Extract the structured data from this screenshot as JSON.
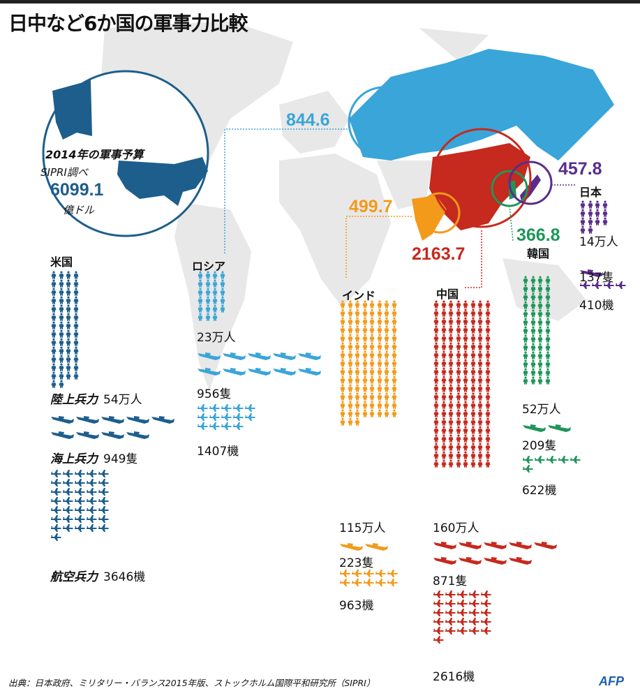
{
  "title": "日中など6か国の軍事力比較",
  "budget_caption": {
    "line1": "2014年の軍事予算",
    "line2": "SIPRI調べ",
    "unit": "億ドル"
  },
  "category_labels": {
    "land": "陸上兵力",
    "sea": "海上兵力",
    "air": "航空兵力"
  },
  "source": "出典：日本政府、ミリタリー・バランス2015年版、ストックホルム国際平和研究所（SIPRI）",
  "logo": "AFP",
  "colors": {
    "usa": "#1d5e8c",
    "russia": "#3aa5d8",
    "india": "#f39a1b",
    "china": "#c6291d",
    "korea": "#1e9659",
    "japan": "#5a2c8c",
    "land": "#e6e6e6"
  },
  "chart_data": {
    "type": "infographic-pictogram",
    "title": "日中など6か国の軍事力比較",
    "units": {
      "budget": "億ドル",
      "troops": "万人",
      "ships": "隻",
      "aircraft": "機"
    },
    "icon_scale": {
      "troops_per_icon": 1,
      "ships_per_icon": 100,
      "aircraft_per_icon": 100
    },
    "countries": [
      {
        "key": "usa",
        "name": "米国",
        "budget": 6099.1,
        "budget_label": "6099.1",
        "troops": 54,
        "troops_label": "54万人",
        "ships": 949,
        "ships_label": "949隻",
        "aircraft": 3646,
        "aircraft_label": "3646機"
      },
      {
        "key": "russia",
        "name": "ロシア",
        "budget": 844.6,
        "budget_label": "844.6",
        "troops": 23,
        "troops_label": "23万人",
        "ships": 956,
        "ships_label": "956隻",
        "aircraft": 1407,
        "aircraft_label": "1407機"
      },
      {
        "key": "india",
        "name": "インド",
        "budget": 499.7,
        "budget_label": "499.7",
        "troops": 115,
        "troops_label": "115万人",
        "ships": 223,
        "ships_label": "223隻",
        "aircraft": 963,
        "aircraft_label": "963機"
      },
      {
        "key": "china",
        "name": "中国",
        "budget": 2163.7,
        "budget_label": "2163.7",
        "troops": 160,
        "troops_label": "160万人",
        "ships": 871,
        "ships_label": "871隻",
        "aircraft": 2616,
        "aircraft_label": "2616機"
      },
      {
        "key": "korea",
        "name": "韓国",
        "budget": 366.8,
        "budget_label": "366.8",
        "troops": 52,
        "troops_label": "52万人",
        "ships": 209,
        "ships_label": "209隻",
        "aircraft": 622,
        "aircraft_label": "622機"
      },
      {
        "key": "japan",
        "name": "日本",
        "budget": 457.8,
        "budget_label": "457.8",
        "troops": 14,
        "troops_label": "14万人",
        "ships": 137,
        "ships_label": "137隻",
        "aircraft": 410,
        "aircraft_label": "410機"
      }
    ]
  }
}
